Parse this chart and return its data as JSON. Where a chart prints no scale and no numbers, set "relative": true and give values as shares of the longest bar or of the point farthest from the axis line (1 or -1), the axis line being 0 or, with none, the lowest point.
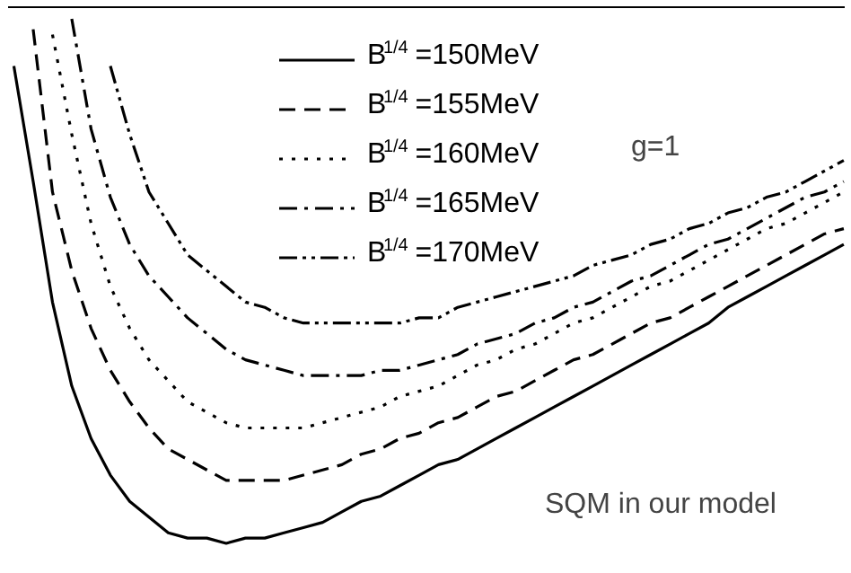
{
  "chart_data": {
    "type": "line",
    "relative": true,
    "legend": "top",
    "grid": false,
    "categories": [
      null,
      null,
      null,
      null,
      null,
      null,
      null,
      null,
      null,
      null,
      null,
      null,
      null,
      null,
      null,
      null,
      null,
      null,
      null,
      null,
      null,
      null,
      null,
      null,
      null,
      null,
      null,
      null,
      null,
      null,
      null,
      null,
      null,
      null,
      null,
      null,
      null,
      null,
      null,
      null,
      null,
      null,
      null,
      null
    ],
    "annotations": [
      "g=1",
      "SQM in our model"
    ],
    "series": [
      {
        "name": "B$^{1/4}$=150MeV",
        "color": "#000000",
        "line_style": "solid",
        "values": [
          0.91,
          0.69,
          0.46,
          0.3,
          0.2,
          0.13,
          0.08,
          0.05,
          0.02,
          0.01,
          0.01,
          0,
          0.01,
          0.01,
          0.02,
          0.03,
          0.04,
          0.06,
          0.08,
          0.09,
          0.11,
          0.13,
          0.15,
          0.16,
          0.18,
          0.2,
          0.22,
          0.24,
          0.26,
          0.28,
          0.3,
          0.32,
          0.34,
          0.36,
          0.38,
          0.4,
          0.42,
          0.45,
          0.47,
          0.49,
          0.51,
          0.53,
          0.55,
          0.57
        ]
      },
      {
        "name": "B$^{1/4}$=155MeV",
        "color": "#000000",
        "line_style": "dashed",
        "values": [
          null,
          0.98,
          0.67,
          0.52,
          0.41,
          0.33,
          0.27,
          0.22,
          0.18,
          0.16,
          0.14,
          0.12,
          0.12,
          0.12,
          0.12,
          0.13,
          0.14,
          0.15,
          0.17,
          0.18,
          0.2,
          0.21,
          0.23,
          0.24,
          0.26,
          0.28,
          0.29,
          0.31,
          0.33,
          0.35,
          0.36,
          0.38,
          0.4,
          0.42,
          0.43,
          0.45,
          0.47,
          0.49,
          0.51,
          0.53,
          0.55,
          0.57,
          0.59,
          0.6
        ]
      },
      {
        "name": "B$^{1/4}$=160MeV",
        "color": "#000000",
        "line_style": "dotted",
        "values": [
          null,
          null,
          0.97,
          0.78,
          0.61,
          0.49,
          0.41,
          0.35,
          0.31,
          0.27,
          0.25,
          0.23,
          0.22,
          0.22,
          0.22,
          0.22,
          0.23,
          0.24,
          0.25,
          0.26,
          0.28,
          0.29,
          0.3,
          0.32,
          0.34,
          0.35,
          0.37,
          0.38,
          0.4,
          0.42,
          0.43,
          0.45,
          0.47,
          0.49,
          0.5,
          0.52,
          0.54,
          0.56,
          0.58,
          0.6,
          0.61,
          0.63,
          0.65,
          0.67
        ]
      },
      {
        "name": "B$^{1/4}$=165MeV",
        "color": "#000000",
        "line_style": "dashdot",
        "values": [
          null,
          null,
          null,
          1,
          0.79,
          0.66,
          0.57,
          0.51,
          0.47,
          0.43,
          0.4,
          0.37,
          0.35,
          0.34,
          0.33,
          0.32,
          0.32,
          0.32,
          0.32,
          0.33,
          0.33,
          0.34,
          0.35,
          0.36,
          0.38,
          0.39,
          0.4,
          0.42,
          0.43,
          0.45,
          0.46,
          0.48,
          0.5,
          0.51,
          0.53,
          0.55,
          0.57,
          0.58,
          0.6,
          0.62,
          0.64,
          0.66,
          0.67,
          0.69
        ]
      },
      {
        "name": "B$^{1/4}$=170MeV",
        "color": "#000000",
        "line_style": "dashdotdot",
        "values": [
          null,
          null,
          null,
          null,
          null,
          0.91,
          0.78,
          0.67,
          0.61,
          0.55,
          0.52,
          0.49,
          0.46,
          0.45,
          0.43,
          0.42,
          0.42,
          0.42,
          0.42,
          0.42,
          0.42,
          0.43,
          0.43,
          0.45,
          0.46,
          0.47,
          0.48,
          0.49,
          0.5,
          0.51,
          0.53,
          0.54,
          0.55,
          0.57,
          0.58,
          0.6,
          0.61,
          0.63,
          0.64,
          0.66,
          0.67,
          0.69,
          0.71,
          0.73
        ]
      }
    ]
  }
}
